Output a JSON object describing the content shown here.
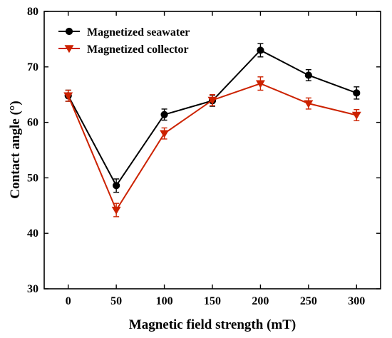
{
  "chart_data": {
    "type": "line",
    "title": "",
    "xlabel": "Magnetic field strength (mT)",
    "ylabel": "Contact angle (°)",
    "x": [
      0,
      50,
      100,
      150,
      200,
      250,
      300
    ],
    "xlim": [
      -25,
      325
    ],
    "ylim": [
      30,
      80
    ],
    "xticks": [
      0,
      50,
      100,
      150,
      200,
      250,
      300
    ],
    "yticks": [
      30,
      40,
      50,
      60,
      70,
      80
    ],
    "grid": false,
    "legend_position": "top-left",
    "series": [
      {
        "name": "Magnetized seawater",
        "color": "#000000",
        "marker": "circle",
        "values": [
          64.8,
          48.6,
          61.4,
          63.9,
          73.0,
          68.5,
          65.3
        ],
        "errors": [
          1.0,
          1.2,
          1.0,
          1.0,
          1.2,
          1.0,
          1.1
        ]
      },
      {
        "name": "Magnetized collector",
        "color": "#cc2200",
        "marker": "triangle-down",
        "values": [
          64.8,
          44.2,
          58.0,
          64.0,
          67.0,
          63.4,
          61.3
        ],
        "errors": [
          1.0,
          1.2,
          1.0,
          1.0,
          1.2,
          1.0,
          1.0
        ]
      }
    ]
  }
}
